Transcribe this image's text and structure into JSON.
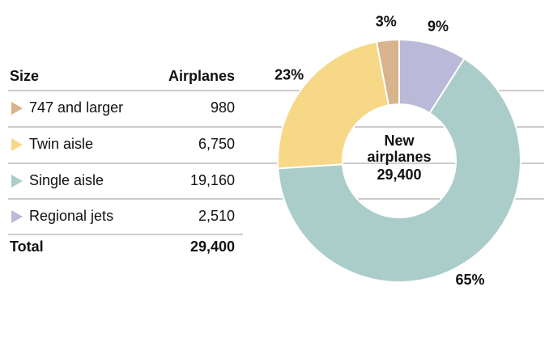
{
  "chart_data": {
    "type": "donut",
    "categories": [
      "747 and larger",
      "Twin aisle",
      "Single aisle",
      "Regional jets"
    ],
    "values": [
      3,
      23,
      65,
      9
    ],
    "value_labels": [
      "3%",
      "23%",
      "65%",
      "9%"
    ],
    "colors": [
      "#d8b48c",
      "#f6d886",
      "#abcdc9",
      "#bab9d7"
    ],
    "center_label": [
      "New",
      "airplanes"
    ]
  },
  "table": {
    "headers": [
      "Size",
      "Airplanes"
    ],
    "counts": [
      "980",
      "6,750",
      "19,160",
      "2,510"
    ],
    "total_label": "Total",
    "total": "29,400"
  }
}
